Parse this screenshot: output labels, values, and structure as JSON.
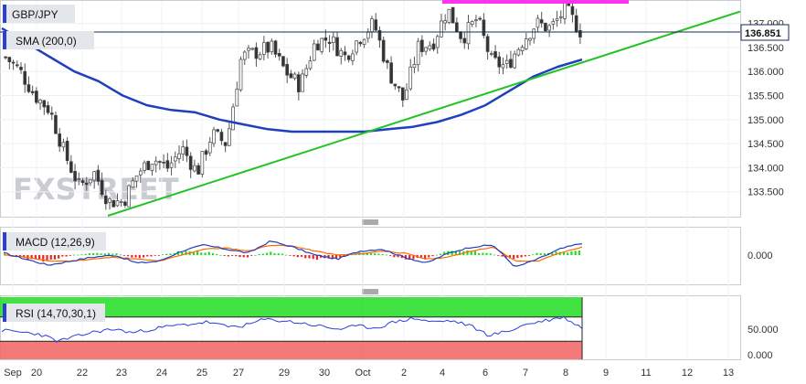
{
  "colors": {
    "sma": "#1f3fbf",
    "trendline": "#22c322",
    "resistance": "#ff33ee",
    "macd": "#1f3fbf",
    "signal": "#ff6a00",
    "hist_up": "#22dd22",
    "hist_down": "#ee2222",
    "rsi_line": "#2a3fd8",
    "rsi_overbought": "#22dd22",
    "rsi_oversold": "#f36a6a",
    "price_tag": "#1a2a55"
  },
  "watermark": "FXSTREET",
  "chart_data": [
    {
      "type": "candlestick",
      "panel": "price",
      "instrument": "GBP/JPY",
      "overlay_label": "SMA (200,0)",
      "current_price_label": "136.851",
      "y_ticks": [
        "133.500",
        "134.000",
        "134.500",
        "135.000",
        "135.500",
        "136.000",
        "136.500",
        "137.000"
      ],
      "ylim": [
        133.0,
        137.45
      ],
      "x_ticks": [
        "Sep",
        "20",
        "22",
        "23",
        "24",
        "25",
        "27",
        "29",
        "30",
        "Oct",
        "2",
        "4",
        "6",
        "7",
        "8",
        "9",
        "11",
        "12",
        "13"
      ],
      "price_path_close": [
        136.3,
        136.0,
        135.5,
        135.2,
        134.3,
        133.6,
        133.9,
        133.3,
        133.3,
        133.9,
        134.2,
        134.0,
        134.4,
        133.9,
        134.7,
        134.5,
        136.3,
        136.4,
        136.5,
        136.0,
        135.7,
        136.6,
        136.7,
        136.3,
        136.7,
        137.0,
        136.0,
        135.4,
        136.5,
        136.6,
        137.3,
        136.7,
        137.1,
        136.2,
        136.1,
        136.6,
        137.0,
        136.9,
        137.3,
        136.85
      ],
      "sma_200": [
        136.9,
        136.6,
        136.3,
        136.0,
        135.8,
        135.5,
        135.3,
        135.2,
        135.15,
        135.0,
        134.9,
        134.8,
        134.75,
        134.75,
        134.75,
        134.75,
        134.8,
        134.85,
        134.95,
        135.1,
        135.3,
        135.6,
        135.9,
        136.1,
        136.25
      ],
      "trendline": {
        "start": 133.0,
        "end": 137.25
      },
      "resistance_level": 137.45
    },
    {
      "type": "line",
      "panel": "macd",
      "label": "MACD (12,26,9)",
      "y_ticks": [
        "0.000"
      ],
      "macd_line": [
        0.1,
        -0.2,
        -0.5,
        -0.3,
        -0.1,
        0.0,
        -0.4,
        -0.3,
        0.2,
        0.5,
        0.3,
        0.1,
        0.7,
        0.4,
        0.0,
        -0.2,
        0.2,
        0.3,
        -0.1,
        -0.4,
        0.1,
        0.4,
        0.5,
        -0.6,
        -0.2,
        0.3,
        0.6
      ],
      "signal_line": [
        0.0,
        -0.1,
        -0.3,
        -0.3,
        -0.2,
        -0.1,
        -0.2,
        -0.3,
        0.0,
        0.3,
        0.35,
        0.2,
        0.5,
        0.45,
        0.2,
        0.0,
        0.05,
        0.2,
        0.1,
        -0.2,
        -0.1,
        0.2,
        0.4,
        -0.3,
        -0.3,
        0.1,
        0.4
      ],
      "histogram": [
        0.1,
        -0.2,
        -0.3,
        0.0,
        0.1,
        0.1,
        -0.2,
        0.0,
        0.2,
        0.2,
        -0.05,
        -0.1,
        0.2,
        -0.05,
        -0.2,
        -0.2,
        0.15,
        0.1,
        -0.2,
        -0.2,
        0.2,
        0.2,
        0.1,
        -0.3,
        0.1,
        0.2,
        0.2
      ]
    },
    {
      "type": "line",
      "panel": "rsi",
      "label": "RSI (14,70,30,1)",
      "y_ticks": [
        "50.000",
        "0.000"
      ],
      "levels": {
        "overbought": 70,
        "oversold": 30
      },
      "rsi": [
        48,
        45,
        42,
        30,
        38,
        46,
        50,
        44,
        50,
        55,
        58,
        62,
        54,
        56,
        66,
        64,
        60,
        55,
        50,
        55,
        52,
        62,
        68,
        62,
        64,
        56,
        40,
        46,
        58,
        64,
        70,
        52
      ]
    }
  ]
}
